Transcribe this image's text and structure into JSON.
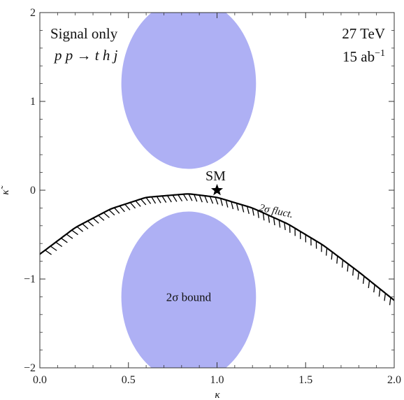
{
  "chart_data": {
    "type": "contour",
    "xlabel": "κ",
    "ylabel": "κ̃",
    "xlim": [
      0.0,
      2.0
    ],
    "ylim": [
      -2,
      2
    ],
    "x_ticks": [
      0.0,
      0.5,
      1.0,
      1.5,
      2.0
    ],
    "x_tick_labels": [
      "0.0",
      "0.5",
      "1.0",
      "1.5",
      "2.0"
    ],
    "y_ticks": [
      -2,
      -1,
      0,
      1,
      2
    ],
    "y_tick_labels": [
      "−2",
      "−1",
      "0",
      "1",
      "2"
    ],
    "annotations": {
      "top_left_line1": "Signal only",
      "top_left_line2": "p p → t h j",
      "top_right_line1": "27 TeV",
      "top_right_line2": "15 ab",
      "top_right_line2_sup": "−1",
      "sm_label": "SM",
      "fluct_label": "2σ fluct.",
      "bound_label": "2σ bound"
    },
    "regions": [
      {
        "label": "2σ bound",
        "shape": "ellipse",
        "center": [
          0.84,
          1.2
        ],
        "half_width": 0.38,
        "half_height": 0.96
      },
      {
        "label": "2σ bound",
        "shape": "ellipse",
        "center": [
          0.84,
          -1.2
        ],
        "half_width": 0.38,
        "half_height": 0.96
      }
    ],
    "fluct_curve": {
      "label": "2σ fluct.",
      "x": [
        0.0,
        0.2,
        0.4,
        0.6,
        0.84,
        1.0,
        1.2,
        1.4,
        1.6,
        1.8,
        2.0
      ],
      "y": [
        -0.72,
        -0.42,
        -0.21,
        -0.08,
        -0.04,
        -0.08,
        -0.2,
        -0.38,
        -0.62,
        -0.92,
        -1.24
      ]
    },
    "points": [
      {
        "label": "SM",
        "x": 1.0,
        "y": 0.0,
        "marker": "star"
      }
    ],
    "colors": {
      "bound_fill": "#aeb0f4",
      "bound_text": "#2a2ad0",
      "curve": "#000000"
    }
  }
}
